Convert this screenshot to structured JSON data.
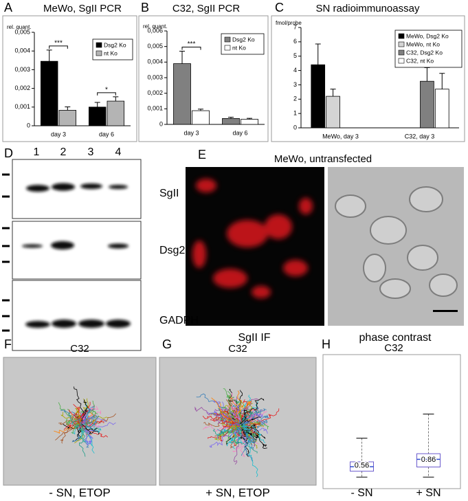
{
  "figure": {
    "panel_letters": [
      "A",
      "B",
      "C",
      "D",
      "E",
      "F",
      "G",
      "H"
    ],
    "blot": {
      "lanes": [
        "1",
        "2",
        "3",
        "4"
      ],
      "bands": [
        "SgII",
        "Dsg2",
        "GADPH"
      ]
    },
    "if": {
      "title": "MeWo, untransfected",
      "captions": [
        "SgII IF",
        "phase contrast"
      ]
    },
    "tracks": [
      {
        "title": "C32",
        "caption": "- SN, ETOP"
      },
      {
        "title": "C32",
        "caption": "+ SN, ETOP"
      }
    ]
  },
  "chart_data": [
    {
      "type": "bar",
      "title": "MeWo, SgII PCR",
      "y_label": "rel. quant.",
      "categories": [
        "day 3",
        "day 6"
      ],
      "series": [
        {
          "name": "Dsg2 Ko",
          "color": "#000000",
          "values": [
            0.00345,
            0.001
          ],
          "errors": [
            0.0006,
            0.00025
          ]
        },
        {
          "name": "nt Ko",
          "color": "#b4b4b4",
          "values": [
            0.00083,
            0.00132
          ],
          "errors": [
            0.00018,
            0.00023
          ]
        }
      ],
      "ylim": [
        0,
        0.005
      ],
      "yticks": [
        0,
        {
          "value": 0.001,
          "label": "0,001"
        },
        {
          "value": 0.002,
          "label": "0,002"
        },
        {
          "value": 0.003,
          "label": "0,003"
        },
        {
          "value": 0.004,
          "label": "0,004"
        },
        {
          "value": 0.005,
          "label": "0,005"
        }
      ],
      "annotations": [
        "***",
        "*"
      ]
    },
    {
      "type": "bar",
      "title": "C32, SgII PCR",
      "y_label": "rel. quant.",
      "categories": [
        "day 3",
        "day 6"
      ],
      "series": [
        {
          "name": "Dsg2 Ko",
          "color": "#808080",
          "values": [
            0.0039,
            0.00038
          ],
          "errors": [
            0.0008,
            8e-05
          ]
        },
        {
          "name": "nt Ko",
          "color": "#ffffff",
          "values": [
            0.00088,
            0.00033
          ],
          "errors": [
            0.0001,
            6e-05
          ]
        }
      ],
      "ylim": [
        0,
        0.006
      ],
      "yticks": [
        0,
        {
          "value": 0.001,
          "label": "0,001"
        },
        {
          "value": 0.002,
          "label": "0,002"
        },
        {
          "value": 0.003,
          "label": "0,003"
        },
        {
          "value": 0.004,
          "label": "0,004"
        },
        {
          "value": 0.005,
          "label": "0,005"
        },
        {
          "value": 0.006,
          "label": "0,006"
        }
      ],
      "annotations": [
        "***"
      ]
    },
    {
      "type": "bar",
      "title": "SN radioimmunoassay",
      "y_label": "fmol/probe",
      "categories": [
        "MeWo, day 3",
        "C32, day 3"
      ],
      "series": [
        {
          "name": "MeWo, Dsg2 Ko",
          "color": "#000000",
          "values": [
            4.4,
            null
          ],
          "errors": [
            1.45,
            null
          ]
        },
        {
          "name": "MeWo, nt Ko",
          "color": "#d4d4d4",
          "values": [
            2.2,
            null
          ],
          "errors": [
            0.5,
            null
          ]
        },
        {
          "name": "C32, Dsg2 Ko",
          "color": "#808080",
          "values": [
            null,
            3.25
          ],
          "errors": [
            null,
            0.95
          ]
        },
        {
          "name": "C32, nt Ko",
          "color": "#ffffff",
          "values": [
            null,
            2.7
          ],
          "errors": [
            null,
            1.1
          ]
        }
      ],
      "ylim": [
        0,
        7
      ],
      "yticks": [
        0,
        1,
        2,
        3,
        4,
        5,
        6,
        7
      ]
    },
    {
      "type": "box",
      "title": "C32",
      "categories": [
        "- SN",
        "+ SN"
      ],
      "medians": [
        0.56,
        0.86
      ],
      "q1": [
        0.38,
        0.55
      ],
      "q3": [
        0.76,
        1.09
      ],
      "whisker_low": [
        0.14,
        0.14
      ],
      "whisker_high": [
        1.72,
        2.7
      ],
      "ylim": [
        -0.3,
        5
      ]
    }
  ]
}
